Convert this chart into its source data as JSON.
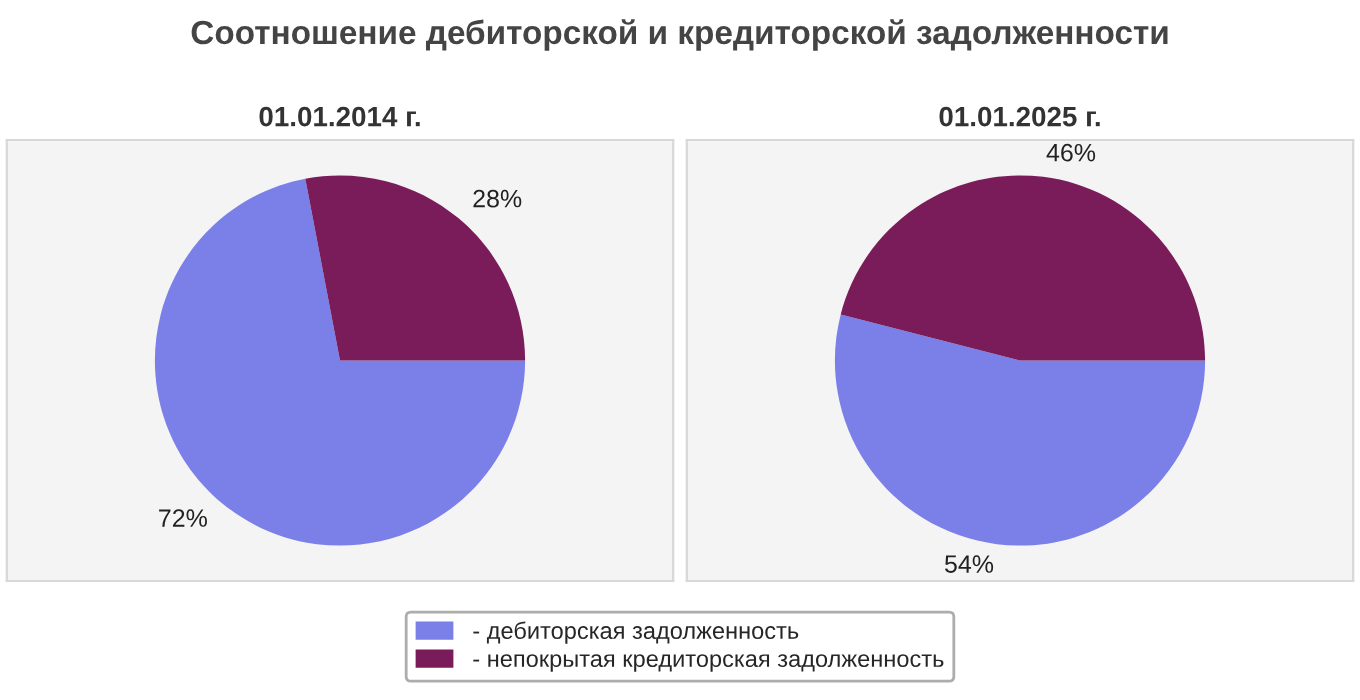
{
  "chart_data": [
    {
      "type": "pie",
      "title": "Соотношение дебиторской и кредиторской задолженности",
      "subtitle": "01.01.2014 г.",
      "categories": [
        "- дебиторская задолженность",
        "- непокрытая кредиторская задолженность"
      ],
      "values": [
        72,
        28
      ],
      "colors": [
        "#7b7fe8",
        "#7a1c5a"
      ],
      "value_labels": [
        "72%",
        "28%"
      ],
      "legend": "bottom"
    },
    {
      "type": "pie",
      "subtitle": "01.01.2025 г.",
      "values": [
        54,
        46
      ],
      "colors": [
        "#7b7fe8",
        "#7a1c5a"
      ],
      "value_labels": [
        "54%",
        "46%"
      ]
    }
  ]
}
